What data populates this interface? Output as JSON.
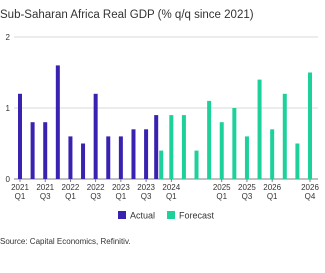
{
  "chart_data": {
    "type": "bar",
    "title": "Sub-Saharan Africa Real GDP (% q/q since 2021)",
    "categories": [
      "2021 Q1",
      null,
      "2021 Q3",
      null,
      "2022 Q1",
      null,
      "2022 Q3",
      null,
      "2023 Q1",
      null,
      "2023 Q3",
      null,
      "2024 Q1",
      null,
      null,
      null,
      "2025 Q1",
      null,
      "2025 Q3",
      null,
      "2026 Q1",
      null,
      null,
      "2026 Q4"
    ],
    "series": [
      {
        "name": "Actual",
        "color": "#3a22b0",
        "values": [
          1.2,
          0.8,
          0.8,
          1.6,
          0.6,
          0.5,
          1.2,
          0.6,
          0.6,
          0.7,
          0.7,
          0.9,
          null,
          null,
          null,
          null,
          null,
          null,
          null,
          null,
          null,
          null,
          null,
          null
        ]
      },
      {
        "name": "Forecast",
        "color": "#1ed19b",
        "values": [
          null,
          null,
          null,
          null,
          null,
          null,
          null,
          null,
          null,
          null,
          null,
          0.4,
          0.9,
          0.9,
          0.4,
          1.1,
          0.8,
          1.0,
          0.6,
          1.4,
          0.7,
          1.2,
          0.5,
          1.5
        ]
      }
    ],
    "ylim": [
      0,
      2
    ],
    "yticks": [
      0,
      1,
      2
    ],
    "grid": true,
    "source": "Source: Capital Economics, Refinitiv."
  }
}
